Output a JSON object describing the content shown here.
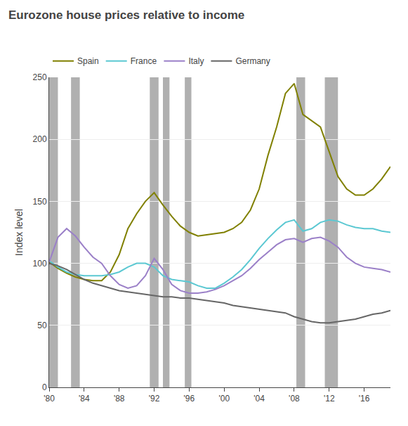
{
  "chart_data": {
    "type": "line",
    "title": "Eurozone house prices relative to income",
    "ylabel": "Index level",
    "x": [
      1980,
      1981,
      1982,
      1983,
      1984,
      1985,
      1986,
      1987,
      1988,
      1989,
      1990,
      1991,
      1992,
      1993,
      1994,
      1995,
      1996,
      1997,
      1998,
      1999,
      2000,
      2001,
      2002,
      2003,
      2004,
      2005,
      2006,
      2007,
      2008,
      2009,
      2010,
      2011,
      2012,
      2013,
      2014,
      2015,
      2016,
      2017,
      2018,
      2019
    ],
    "series": [
      {
        "name": "Spain",
        "color": "#808000",
        "values": [
          101,
          96,
          92,
          89,
          87,
          86,
          86,
          93,
          107,
          128,
          140,
          150,
          157,
          147,
          138,
          130,
          125,
          122,
          123,
          124,
          125,
          128,
          133,
          143,
          160,
          187,
          210,
          237,
          245,
          220,
          215,
          210,
          190,
          170,
          160,
          155,
          155,
          160,
          168,
          178
        ]
      },
      {
        "name": "France",
        "color": "#5bc8d2",
        "values": [
          102,
          97,
          93,
          91,
          90,
          90,
          90,
          91,
          93,
          97,
          100,
          100,
          97,
          90,
          87,
          86,
          85,
          82,
          80,
          80,
          84,
          89,
          95,
          103,
          112,
          120,
          127,
          133,
          135,
          126,
          128,
          133,
          135,
          134,
          131,
          129,
          128,
          128,
          126,
          125
        ]
      },
      {
        "name": "Italy",
        "color": "#9b80c8",
        "values": [
          101,
          121,
          128,
          122,
          113,
          105,
          100,
          90,
          83,
          80,
          82,
          90,
          104,
          95,
          83,
          78,
          76,
          76,
          77,
          79,
          82,
          86,
          90,
          96,
          103,
          109,
          115,
          119,
          120,
          117,
          120,
          121,
          118,
          113,
          105,
          100,
          97,
          96,
          95,
          93
        ]
      },
      {
        "name": "Germany",
        "color": "#666666",
        "values": [
          100,
          98,
          95,
          91,
          87,
          84,
          82,
          80,
          78,
          77,
          76,
          75,
          74,
          73,
          73,
          72,
          72,
          71,
          70,
          69,
          68,
          66,
          65,
          64,
          63,
          62,
          61,
          60,
          57,
          55,
          53,
          52,
          52,
          53,
          54,
          55,
          57,
          59,
          60,
          62
        ]
      }
    ],
    "xlim": [
      1980,
      2019
    ],
    "ylim": [
      0,
      250
    ],
    "xticks": [
      {
        "value": 1980,
        "label": "'80"
      },
      {
        "value": 1984,
        "label": "'84"
      },
      {
        "value": 1988,
        "label": "'88"
      },
      {
        "value": 1992,
        "label": "'92"
      },
      {
        "value": 1996,
        "label": "'96"
      },
      {
        "value": 2000,
        "label": "'00"
      },
      {
        "value": 2004,
        "label": "'04"
      },
      {
        "value": 2008,
        "label": "'08"
      },
      {
        "value": 2012,
        "label": "'12"
      },
      {
        "value": 2016,
        "label": "'16"
      }
    ],
    "yticks": [
      0,
      50,
      100,
      150,
      200,
      250
    ],
    "grid": true,
    "legend": "upper left",
    "bands": {
      "color": "#b0b0b0",
      "ranges": [
        [
          1980.0,
          1981.0
        ],
        [
          1982.5,
          1983.5
        ],
        [
          1991.5,
          1992.5
        ],
        [
          1993.0,
          1993.75
        ],
        [
          1995.5,
          1996.25
        ],
        [
          2008.25,
          2009.25
        ],
        [
          2011.5,
          2013.0
        ]
      ]
    }
  }
}
